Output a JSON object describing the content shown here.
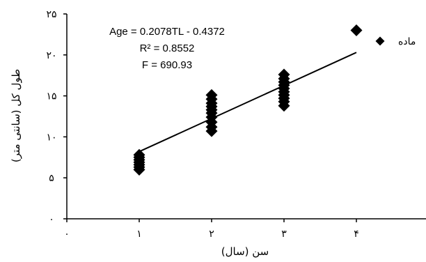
{
  "chart_data": {
    "type": "scatter",
    "xlabel": "سن (سال)",
    "ylabel": "طول کل (سانتی متر)",
    "x_ticks": [
      {
        "value": 0,
        "label": "۰"
      },
      {
        "value": 1,
        "label": "۱"
      },
      {
        "value": 2,
        "label": "۲"
      },
      {
        "value": 3,
        "label": "۳"
      },
      {
        "value": 4,
        "label": "۴"
      },
      {
        "value": 5,
        "label": ""
      }
    ],
    "y_ticks": [
      {
        "value": 0,
        "label": "۰"
      },
      {
        "value": 5,
        "label": "۵"
      },
      {
        "value": 10,
        "label": "۱۰"
      },
      {
        "value": 15,
        "label": "۱۵"
      },
      {
        "value": 20,
        "label": "۲۰"
      },
      {
        "value": 25,
        "label": "۲۵"
      }
    ],
    "xlim": [
      0,
      5
    ],
    "ylim": [
      0,
      25
    ],
    "grid": false,
    "series": [
      {
        "marker": "diamond",
        "color": "#000000",
        "points": [
          [
            1,
            6.0
          ],
          [
            1,
            6.3
          ],
          [
            1,
            6.6
          ],
          [
            1,
            6.9
          ],
          [
            1,
            7.2
          ],
          [
            1,
            7.5
          ],
          [
            1,
            7.8
          ],
          [
            2,
            10.7
          ],
          [
            2,
            11.2
          ],
          [
            2,
            11.8
          ],
          [
            2,
            12.4
          ],
          [
            2,
            12.9
          ],
          [
            2,
            13.3
          ],
          [
            2,
            13.7
          ],
          [
            2,
            14.1
          ],
          [
            2,
            14.6
          ],
          [
            2,
            15.1
          ],
          [
            3,
            13.8
          ],
          [
            3,
            14.3
          ],
          [
            3,
            14.7
          ],
          [
            3,
            15.1
          ],
          [
            3,
            15.5
          ],
          [
            3,
            15.9
          ],
          [
            3,
            16.3
          ],
          [
            3,
            16.7
          ],
          [
            3,
            17.1
          ],
          [
            3,
            17.6
          ],
          [
            4,
            23.0
          ]
        ]
      }
    ],
    "trendline": {
      "x": [
        1,
        4
      ],
      "y": [
        8.2,
        20.3
      ],
      "color": "#000000"
    },
    "annotations": [
      "Age = 0.2078TL - 0.4372",
      "R² = 0.8552",
      "F = 690.93"
    ],
    "legend": {
      "label": "ماده",
      "position": "top-right"
    }
  }
}
